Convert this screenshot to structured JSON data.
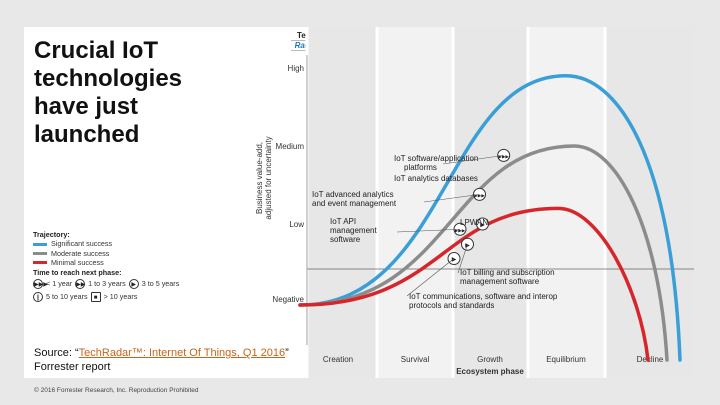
{
  "slide": {
    "title": "Crucial IoT technologies have just launched",
    "source_prefix": "Source: “",
    "source_link": "TechRadar™: Internet Of Things, Q1 2016",
    "source_suffix": "” Forrester report",
    "copyright": "© 2016 Forrester Research, Inc. Reproduction Prohibited"
  },
  "badge": {
    "line1": "Tech",
    "line2": "Radar"
  },
  "legend": {
    "title": "Trajectory:",
    "items": [
      {
        "label": "Significant success",
        "color": "#3a9fd6"
      },
      {
        "label": "Moderate success",
        "color": "#8c8c8c"
      },
      {
        "label": "Minimal success",
        "color": "#d7262b"
      }
    ],
    "time_title": "Time to reach next phase:",
    "times": [
      {
        "icon": "▶▶▶",
        "label": "< 1 year"
      },
      {
        "icon": "▶▶",
        "label": "1 to 3 years"
      },
      {
        "icon": "▶",
        "label": "3 to 5 years"
      },
      {
        "icon": "||",
        "label": "5 to 10 years"
      },
      {
        "icon": "■",
        "label": "> 10 years"
      }
    ]
  },
  "chart_data": {
    "type": "line",
    "ylabel": "Business value-add, adjusted for uncertainty",
    "xlabel": "Ecosystem phase",
    "y_levels": [
      "Negative",
      "Low",
      "Medium",
      "High"
    ],
    "x_phases": [
      "Creation",
      "Survival",
      "Growth",
      "Equilibrium",
      "Decline"
    ],
    "series": [
      {
        "name": "Significant success",
        "color": "#3a9fd6",
        "peak_phase": 3.0,
        "peak_level": 2.9
      },
      {
        "name": "Moderate success",
        "color": "#8c8c8c",
        "peak_phase": 3.1,
        "peak_level": 2.0
      },
      {
        "name": "Minimal success",
        "color": "#d7262b",
        "peak_phase": 2.9,
        "peak_level": 1.2
      }
    ],
    "technologies": [
      {
        "label": "IoT software/application platforms",
        "phase": 2.18,
        "level": 1.88,
        "icon": "▶▶▶"
      },
      {
        "label": "IoT analytics databases",
        "phase": 2.18,
        "level": 1.88,
        "icon": ""
      },
      {
        "label": "IoT advanced analytics and event management",
        "phase": 1.86,
        "level": 1.38,
        "icon": "▶▶▶"
      },
      {
        "label": "LPWAN",
        "phase": 1.9,
        "level": 1.0,
        "icon": "▶"
      },
      {
        "label": "IoT API management software",
        "phase": 1.6,
        "level": 0.93,
        "icon": "▶▶▶"
      },
      {
        "label": "IoT billing and subscription management software",
        "phase": 1.7,
        "level": 0.73,
        "icon": "▶"
      },
      {
        "label": "IoT communications, software and interop protocols and standards",
        "phase": 1.52,
        "level": 0.54,
        "icon": "▶"
      }
    ]
  }
}
